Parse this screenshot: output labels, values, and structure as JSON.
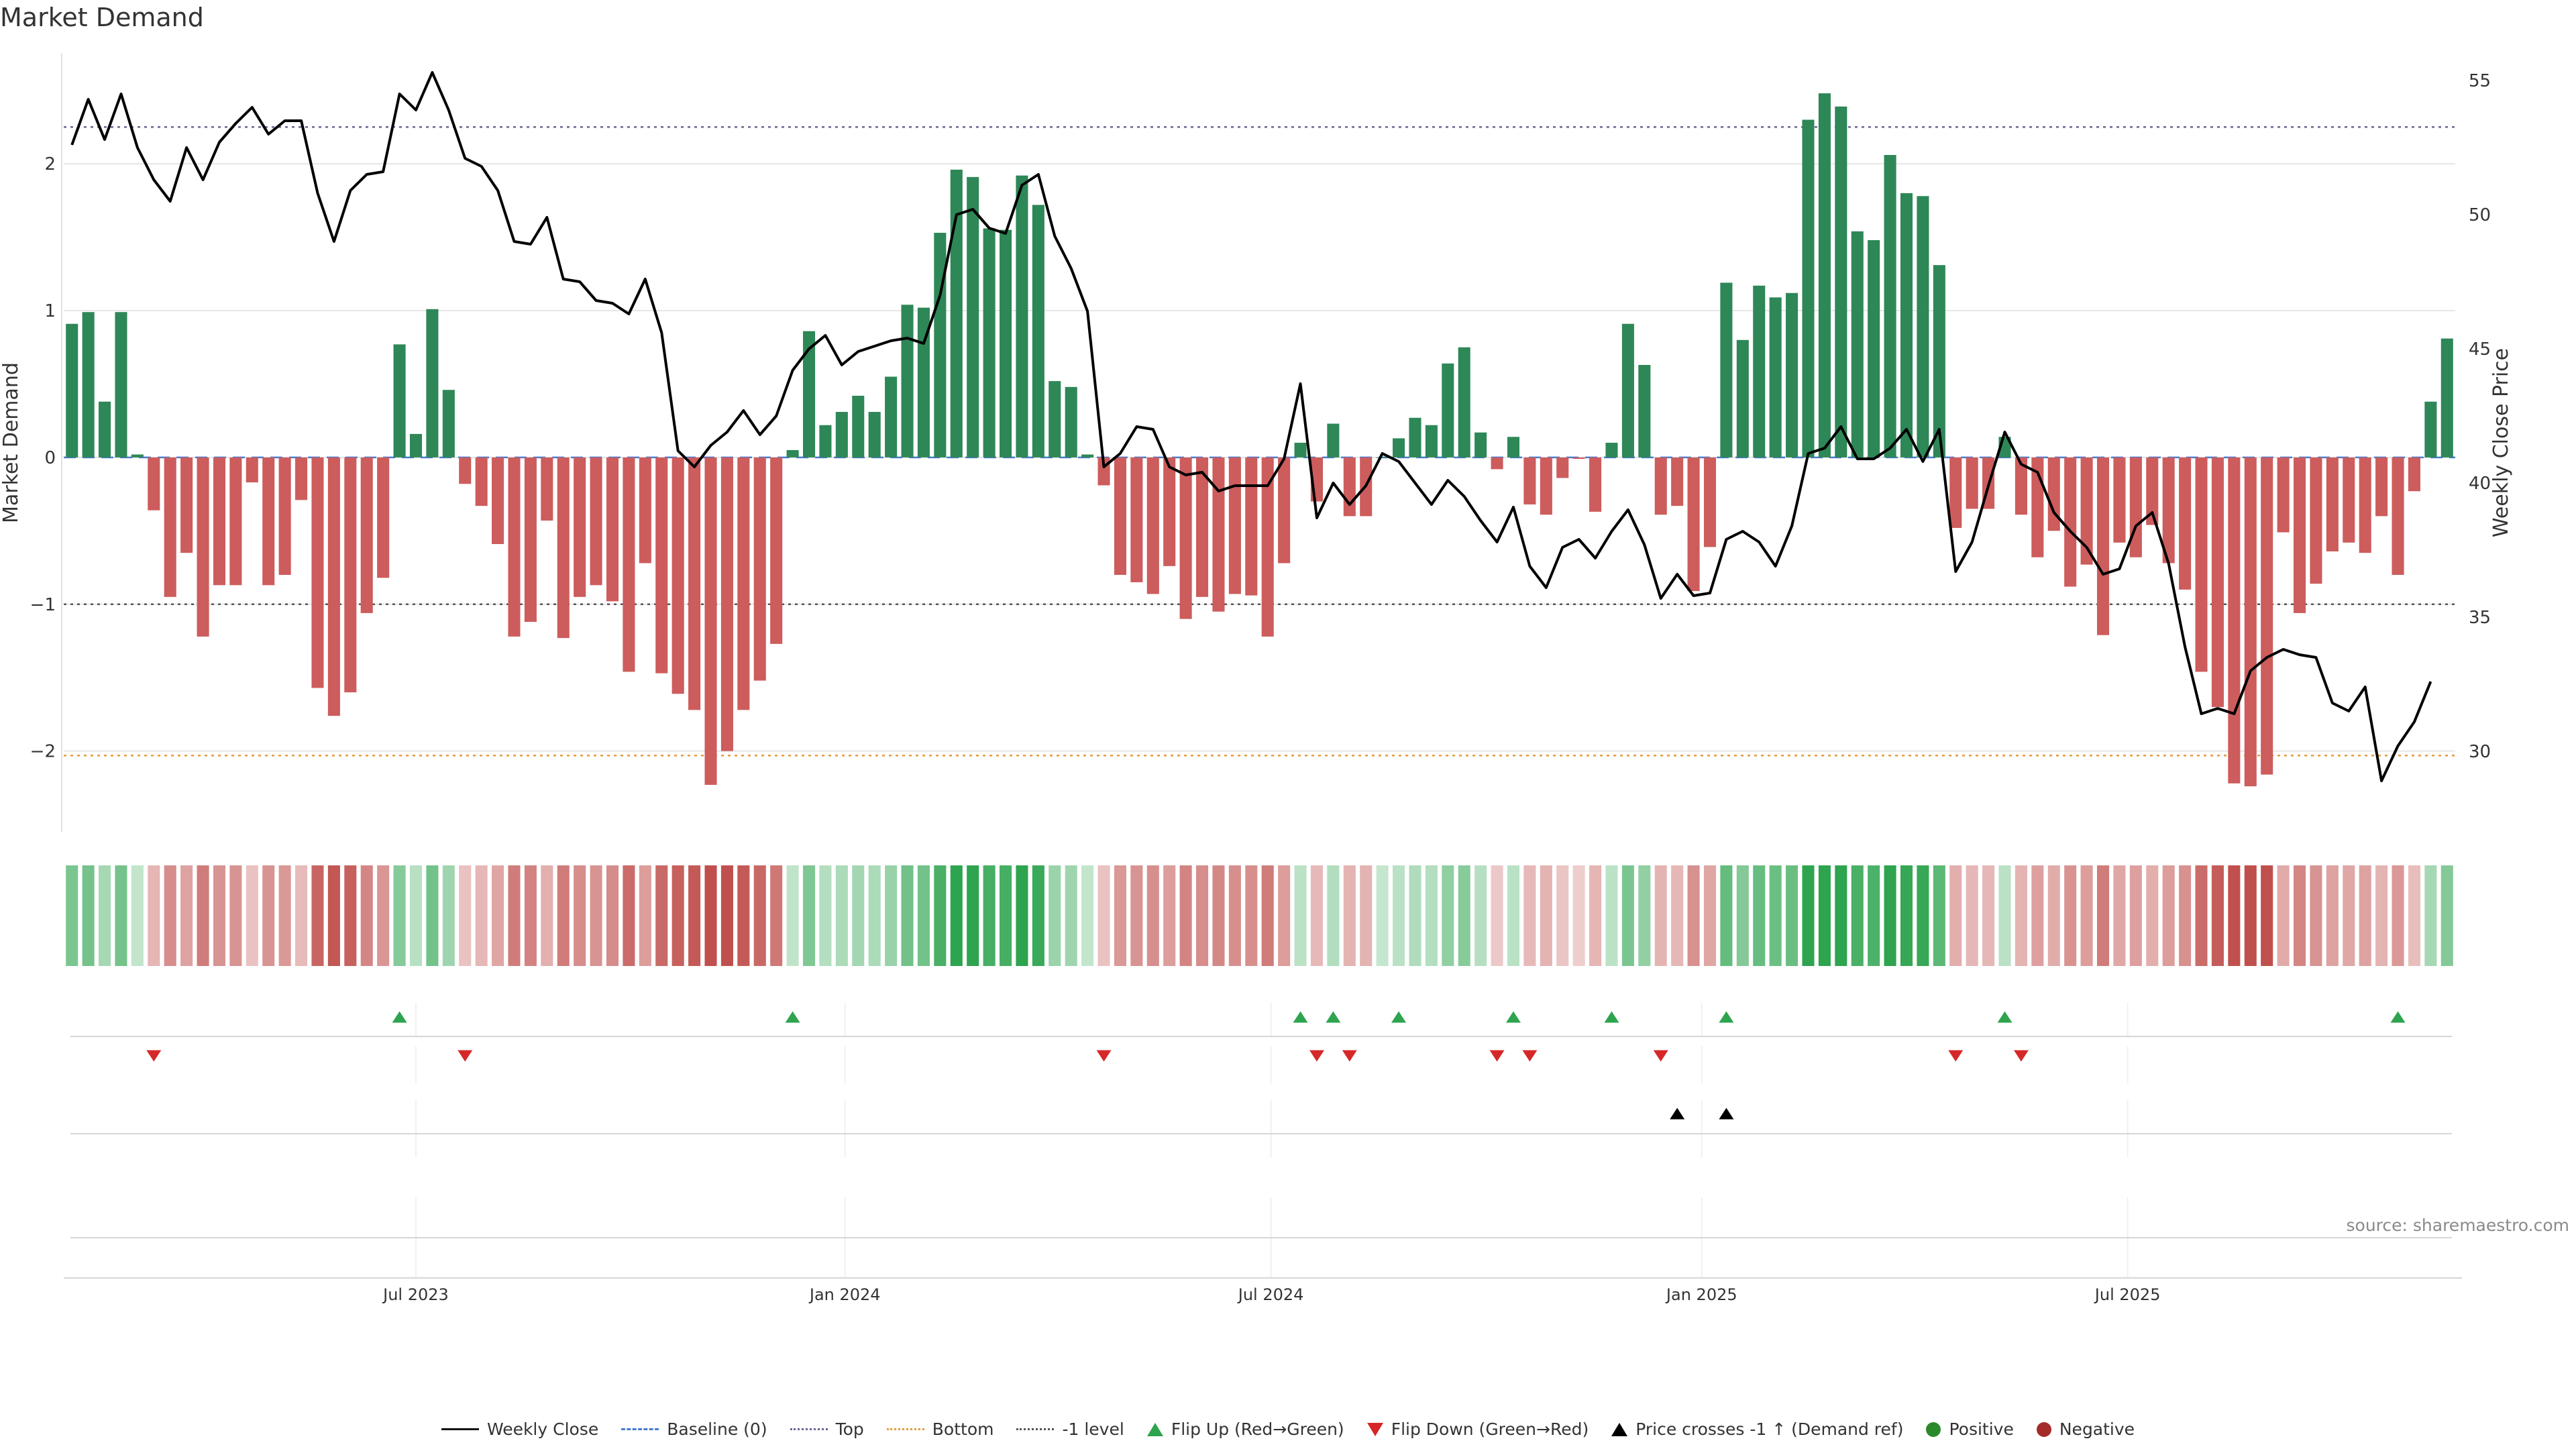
{
  "title": "Market Demand",
  "source": "source: sharemaestro.com",
  "colors": {
    "positive_bar": "#2e8757",
    "negative_bar": "#cd5c5c",
    "price_line": "#000000",
    "flip_up": "#2ea44f",
    "flip_down": "#d62728",
    "top_line": "#6d6394",
    "bottom_line": "#e49a3c",
    "minus1_line": "#555555",
    "baseline": "#4a7bd0"
  },
  "legend": {
    "weekly_close": "Weekly Close",
    "baseline": "Baseline (0)",
    "top": "Top",
    "bottom": "Bottom",
    "minus1": "-1 level",
    "flip_up": "Flip Up (Red→Green)",
    "flip_down": "Flip Down (Green→Red)",
    "price_cross": "Price crosses -1 ↑ (Demand ref)",
    "positive": "Positive",
    "negative": "Negative"
  },
  "chart_data": {
    "type": "bar",
    "title": "Market Demand",
    "ylabel": "Market Demand",
    "y2label": "Weekly Close Price",
    "ylim": [
      -2.55,
      2.75
    ],
    "y2lim": [
      27,
      56
    ],
    "yticks": [
      2,
      1,
      0,
      -1,
      -2
    ],
    "ytick_labels": [
      "2",
      "1",
      "0",
      "−1",
      "−2"
    ],
    "y2ticks": [
      55,
      50,
      45,
      40,
      35,
      30
    ],
    "y2tick_labels": [
      "55",
      "50",
      "45",
      "40",
      "35",
      "30"
    ],
    "reference_lines": {
      "top": 2.25,
      "bottom": -2.03,
      "minus1": -1.0,
      "baseline": 0
    },
    "x_start": "2023-03-06",
    "x_end": "2025-10-27",
    "xticks": [
      {
        "week": 21.5,
        "label": "Jul 2023"
      },
      {
        "week": 47.7,
        "label": "Jan 2024"
      },
      {
        "week": 73.7,
        "label": "Jul 2024"
      },
      {
        "week": 100.0,
        "label": "Jan 2025"
      },
      {
        "week": 126.0,
        "label": "Jul 2025"
      }
    ],
    "demand": [
      0.91,
      0.99,
      0.38,
      0.99,
      0.02,
      -0.36,
      -0.95,
      -0.65,
      -1.22,
      -0.87,
      -0.87,
      -0.17,
      -0.87,
      -0.8,
      -0.29,
      -1.57,
      -1.76,
      -1.6,
      -1.06,
      -0.82,
      0.77,
      0.16,
      1.01,
      0.46,
      -0.18,
      -0.33,
      -0.59,
      -1.22,
      -1.12,
      -0.43,
      -1.23,
      -0.95,
      -0.87,
      -0.98,
      -1.46,
      -0.72,
      -1.47,
      -1.61,
      -1.72,
      -2.23,
      -2.0,
      -1.72,
      -1.52,
      -1.27,
      0.05,
      0.86,
      0.22,
      0.31,
      0.42,
      0.31,
      0.55,
      1.04,
      1.02,
      1.53,
      1.96,
      1.91,
      1.56,
      1.55,
      1.92,
      1.72,
      0.52,
      0.48,
      0.02,
      -0.19,
      -0.8,
      -0.85,
      -0.93,
      -0.74,
      -1.1,
      -0.95,
      -1.05,
      -0.93,
      -0.94,
      -1.22,
      -0.72,
      0.1,
      -0.3,
      0.23,
      -0.4,
      -0.4,
      0.0,
      0.13,
      0.27,
      0.22,
      0.64,
      0.75,
      0.17,
      -0.08,
      0.14,
      -0.32,
      -0.39,
      -0.14,
      -0.01,
      -0.37,
      0.1,
      0.91,
      0.63,
      -0.39,
      -0.33,
      -0.91,
      -0.61,
      1.19,
      0.8,
      1.17,
      1.09,
      1.12,
      2.3,
      2.48,
      2.39,
      1.54,
      1.48,
      2.06,
      1.8,
      1.78,
      1.31,
      -0.48,
      -0.35,
      -0.35,
      0.14,
      -0.39,
      -0.68,
      -0.5,
      -0.88,
      -0.73,
      -1.21,
      -0.58,
      -0.68,
      -0.46,
      -0.72,
      -0.9,
      -1.46,
      -1.7,
      -2.22,
      -2.24,
      -2.16,
      -0.51,
      -1.06,
      -0.86,
      -0.64,
      -0.58,
      -0.65,
      -0.4,
      -0.8,
      -0.23,
      0.38,
      0.81
    ],
    "price": [
      52.6,
      54.3,
      52.8,
      54.5,
      52.5,
      51.3,
      50.5,
      52.5,
      51.3,
      52.7,
      53.4,
      54.0,
      53.0,
      53.5,
      53.5,
      50.8,
      49.0,
      50.9,
      51.5,
      51.6,
      54.5,
      53.9,
      55.3,
      53.9,
      52.1,
      51.8,
      50.9,
      49.0,
      48.9,
      49.9,
      47.6,
      47.5,
      46.8,
      46.7,
      46.3,
      47.6,
      45.6,
      41.2,
      40.6,
      41.4,
      41.9,
      42.7,
      41.8,
      42.5,
      44.2,
      45.0,
      45.5,
      44.4,
      44.9,
      45.1,
      45.3,
      45.4,
      45.2,
      47.0,
      50.0,
      50.2,
      49.5,
      49.3,
      51.1,
      51.5,
      49.2,
      48.0,
      46.4,
      40.6,
      41.1,
      42.1,
      42.0,
      40.6,
      40.3,
      40.4,
      39.7,
      39.9,
      39.9,
      39.9,
      40.9,
      43.7,
      38.7,
      40.0,
      39.2,
      39.9,
      41.1,
      40.8,
      40.0,
      39.2,
      40.1,
      39.5,
      38.6,
      37.8,
      39.1,
      36.9,
      36.1,
      37.6,
      37.9,
      37.2,
      38.2,
      39.0,
      37.7,
      35.7,
      36.6,
      35.8,
      35.9,
      37.9,
      38.2,
      37.8,
      36.9,
      38.4,
      41.1,
      41.3,
      42.1,
      40.9,
      40.9,
      41.3,
      42.0,
      40.8,
      42.0,
      36.7,
      37.8,
      39.9,
      41.9,
      40.7,
      40.4,
      38.9,
      38.2,
      37.6,
      36.6,
      36.8,
      38.4,
      38.9,
      37.0,
      33.9,
      31.4,
      31.6,
      31.4,
      33.0,
      33.5,
      33.8,
      33.6,
      33.5,
      31.8,
      31.5,
      32.4,
      28.9,
      30.2,
      31.1,
      32.6
    ],
    "flip_up": [
      20,
      44,
      75,
      77,
      81,
      88,
      94,
      101,
      118,
      142
    ],
    "flip_down": [
      5,
      24,
      63,
      76,
      78,
      87,
      89,
      97,
      115,
      119
    ],
    "price_cross": [
      98,
      101
    ]
  }
}
